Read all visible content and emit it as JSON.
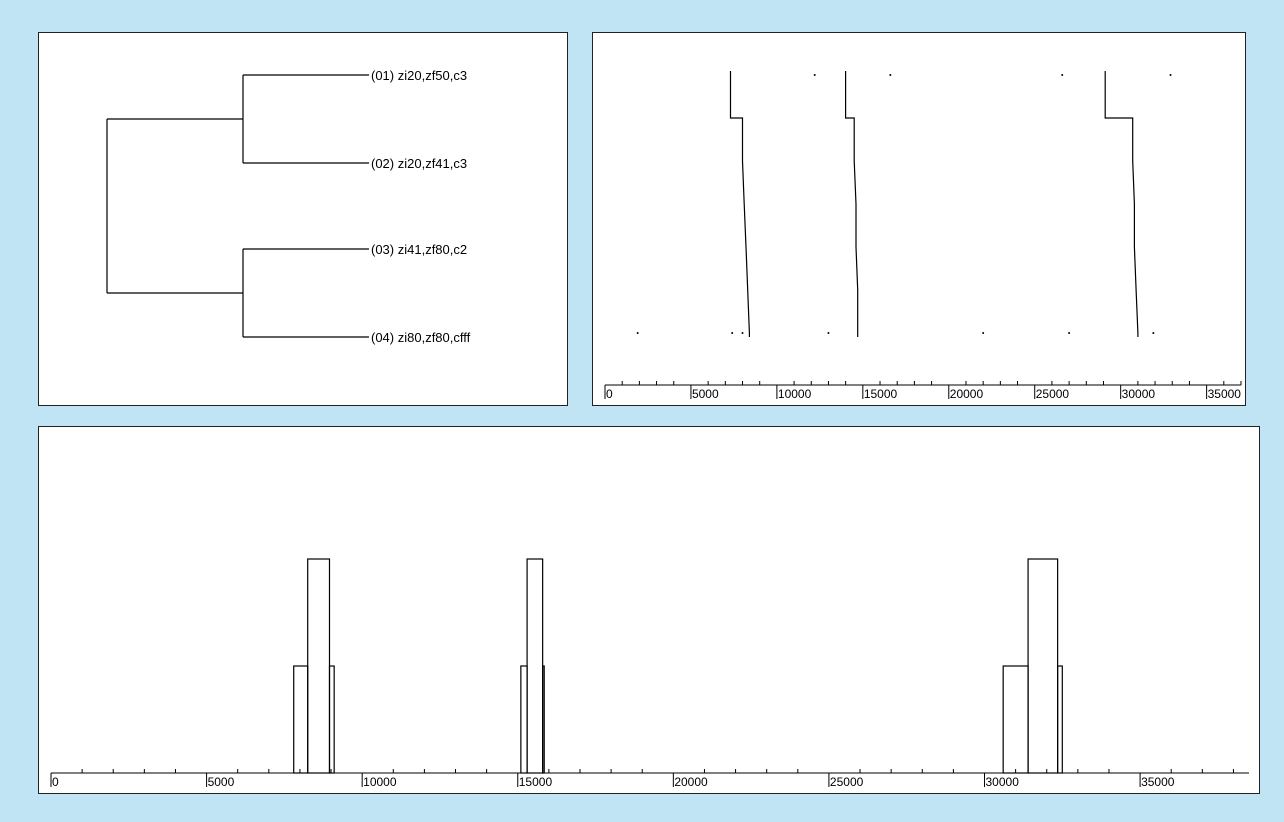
{
  "chart_data": [
    {
      "type": "dendrogram",
      "title": "",
      "leaves": [
        "(01) zi20,zf50,c3",
        "(02) zi20,zf41,c3",
        "(03) zi41,zf80,c2",
        "(04) zi80,zf80,cfff"
      ],
      "merges": [
        {
          "clusters": [
            "(01)",
            "(02)"
          ]
        },
        {
          "clusters": [
            "(03)",
            "(04)"
          ]
        },
        {
          "clusters": [
            "(01,02)",
            "(03,04)"
          ]
        }
      ]
    },
    {
      "type": "line",
      "title": "",
      "xlabel": "",
      "ylabel": "",
      "xlim": [
        0,
        37000
      ],
      "x_ticks": [
        0,
        5000,
        10000,
        15000,
        20000,
        25000,
        30000,
        35000
      ],
      "rows": 7,
      "series": [
        {
          "points": [
            [
              7300,
              0
            ],
            [
              7300,
              1
            ],
            [
              8000,
              1
            ],
            [
              8000,
              2
            ],
            [
              8100,
              3
            ],
            [
              8200,
              4
            ],
            [
              8300,
              5
            ],
            [
              8400,
              6
            ]
          ]
        },
        {
          "points": [
            [
              14000,
              0
            ],
            [
              14000,
              1
            ],
            [
              14500,
              1
            ],
            [
              14500,
              2
            ],
            [
              14600,
              3
            ],
            [
              14600,
              4
            ],
            [
              14700,
              5
            ],
            [
              14700,
              6
            ]
          ]
        },
        {
          "points": [
            [
              29100,
              0
            ],
            [
              29100,
              1
            ],
            [
              30700,
              1
            ],
            [
              30700,
              2
            ],
            [
              30800,
              3
            ],
            [
              30800,
              4
            ],
            [
              30900,
              5
            ],
            [
              31000,
              6
            ]
          ]
        }
      ],
      "dots": [
        [
          12200,
          0
        ],
        [
          16600,
          0
        ],
        [
          26600,
          0
        ],
        [
          32900,
          0
        ],
        [
          1900,
          6
        ],
        [
          7400,
          6
        ],
        [
          8000,
          6
        ],
        [
          13000,
          6
        ],
        [
          22000,
          6
        ],
        [
          27000,
          6
        ],
        [
          31900,
          6
        ]
      ]
    },
    {
      "type": "bar",
      "title": "",
      "xlabel": "",
      "ylabel": "",
      "xlim": [
        0,
        38500
      ],
      "ylim": [
        0,
        4
      ],
      "x_ticks": [
        0,
        5000,
        10000,
        15000,
        20000,
        25000,
        30000,
        35000
      ],
      "bars": [
        {
          "x0": 8250,
          "x1": 8950,
          "value": 4
        },
        {
          "x0": 7800,
          "x1": 8250,
          "value": 2
        },
        {
          "x0": 8950,
          "x1": 9100,
          "value": 2
        },
        {
          "x0": 15300,
          "x1": 15800,
          "value": 4
        },
        {
          "x0": 15100,
          "x1": 15300,
          "value": 2
        },
        {
          "x0": 15800,
          "x1": 15850,
          "value": 2
        },
        {
          "x0": 31400,
          "x1": 32350,
          "value": 4
        },
        {
          "x0": 30600,
          "x1": 31400,
          "value": 2
        },
        {
          "x0": 32350,
          "x1": 32500,
          "value": 2
        }
      ]
    }
  ]
}
